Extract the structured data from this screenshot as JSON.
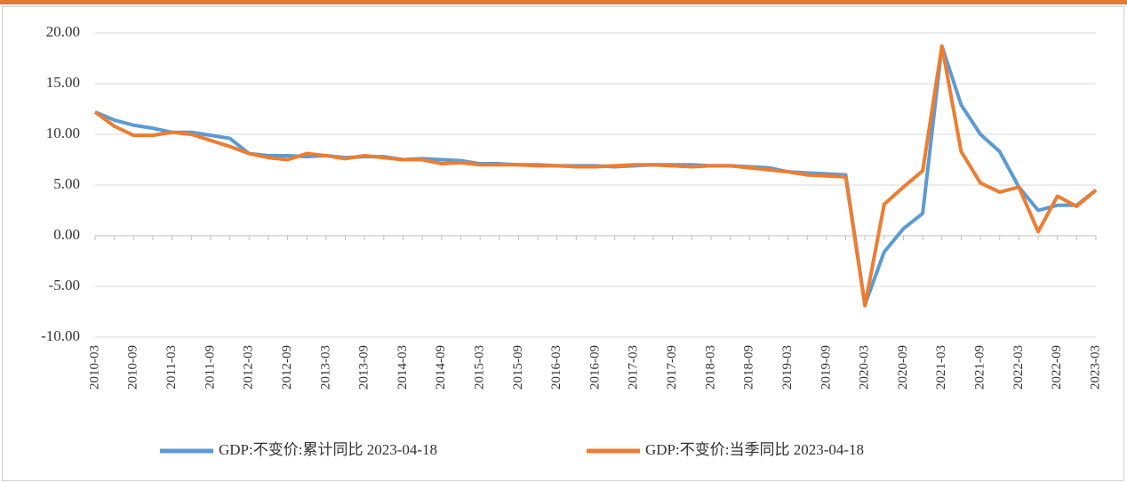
{
  "chart_data": {
    "type": "line",
    "categories": [
      "2010-03",
      null,
      "2010-09",
      null,
      "2011-03",
      null,
      "2011-09",
      null,
      "2012-03",
      null,
      "2012-09",
      null,
      "2013-03",
      null,
      "2013-09",
      null,
      "2014-03",
      null,
      "2014-09",
      null,
      "2015-03",
      null,
      "2015-09",
      null,
      "2016-03",
      null,
      "2016-09",
      null,
      "2017-03",
      null,
      "2017-09",
      null,
      "2018-03",
      null,
      "2018-09",
      null,
      "2019-03",
      null,
      "2019-09",
      null,
      "2020-03",
      null,
      "2020-09",
      null,
      "2021-03",
      null,
      "2021-09",
      null,
      "2022-03",
      null,
      "2022-09",
      null,
      "2023-03"
    ],
    "series": [
      {
        "name": "GDP:不变价:累计同比 2023-04-18",
        "color": "#5b9bd5",
        "values": [
          12.2,
          11.4,
          10.9,
          10.6,
          10.2,
          10.2,
          9.9,
          9.6,
          8.1,
          7.9,
          7.9,
          7.8,
          7.9,
          7.7,
          7.8,
          7.8,
          7.5,
          7.6,
          7.5,
          7.4,
          7.1,
          7.1,
          7.0,
          7.0,
          6.9,
          6.9,
          6.9,
          6.8,
          6.9,
          7.0,
          7.0,
          7.0,
          6.9,
          6.9,
          6.8,
          6.7,
          6.3,
          6.2,
          6.1,
          6.0,
          -6.8,
          -1.6,
          0.7,
          2.2,
          18.7,
          12.9,
          10.0,
          8.3,
          4.8,
          2.5,
          3.0,
          3.0,
          4.5
        ]
      },
      {
        "name": "GDP:不变价:当季同比 2023-04-18",
        "color": "#ed7d31",
        "values": [
          12.2,
          10.8,
          9.9,
          9.9,
          10.2,
          10.0,
          9.4,
          8.8,
          8.1,
          7.7,
          7.5,
          8.1,
          7.9,
          7.6,
          7.9,
          7.7,
          7.5,
          7.5,
          7.1,
          7.2,
          7.0,
          7.0,
          7.0,
          6.9,
          6.9,
          6.8,
          6.8,
          6.9,
          7.0,
          7.0,
          6.9,
          6.8,
          6.9,
          6.9,
          6.7,
          6.5,
          6.3,
          6.0,
          5.9,
          5.8,
          -6.9,
          3.1,
          4.8,
          6.4,
          18.7,
          8.3,
          5.2,
          4.3,
          4.8,
          0.4,
          3.9,
          2.9,
          4.5
        ]
      }
    ],
    "ylim": [
      -10,
      20
    ],
    "yticks": [
      {
        "value": -10,
        "label": "-10.00"
      },
      {
        "value": -5,
        "label": "-5.00"
      },
      {
        "value": 0,
        "label": "0.00"
      },
      {
        "value": 5,
        "label": "5.00"
      },
      {
        "value": 10,
        "label": "10.00"
      },
      {
        "value": 15,
        "label": "15.00"
      },
      {
        "value": 20,
        "label": "20.00"
      }
    ],
    "grid": true
  }
}
